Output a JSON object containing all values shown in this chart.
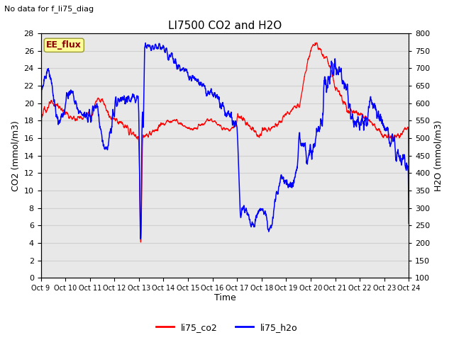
{
  "title": "LI7500 CO2 and H2O",
  "top_left_text": "No data for f_li75_diag",
  "xlabel": "Time",
  "ylabel_left": "CO2 (mmol/m3)",
  "ylabel_right": "H2O (mmol/m3)",
  "watermark_text": "EE_flux",
  "xlim": [
    0,
    15
  ],
  "ylim_left": [
    0,
    28
  ],
  "ylim_right": [
    100,
    800
  ],
  "xtick_labels": [
    "Oct 9",
    "Oct 10",
    "Oct 11",
    "Oct 12",
    "Oct 13",
    "Oct 14",
    "Oct 15",
    "Oct 16",
    "Oct 17",
    "Oct 18",
    "Oct 19",
    "Oct 20",
    "Oct 21",
    "Oct 22",
    "Oct 23",
    "Oct 24"
  ],
  "grid_color": "#d0d0d0",
  "bg_color": "#e8e8e8",
  "legend_labels": [
    "li75_co2",
    "li75_h2o"
  ],
  "legend_colors": [
    "red",
    "blue"
  ],
  "co2_color": "red",
  "h2o_color": "blue",
  "title_fontsize": 11,
  "axis_fontsize": 9,
  "tick_fontsize": 8
}
